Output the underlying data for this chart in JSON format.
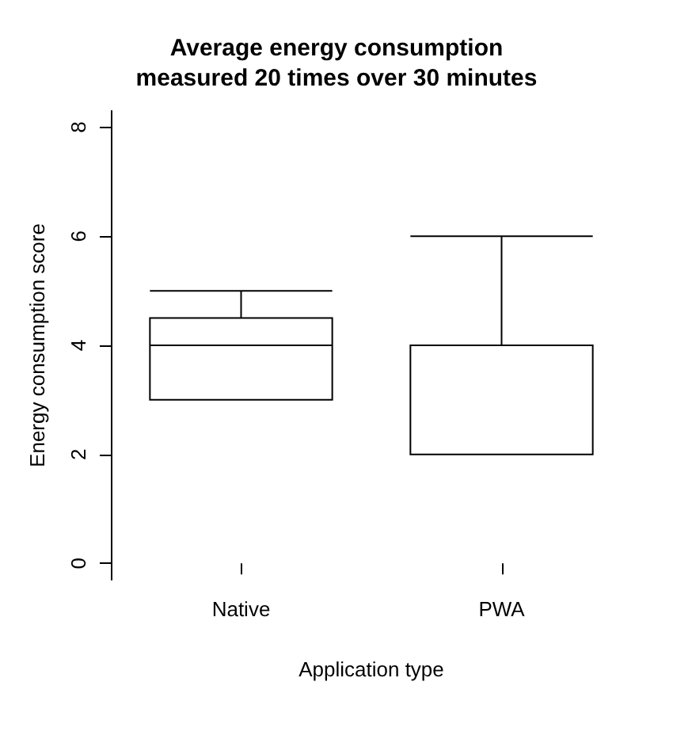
{
  "chart_data": {
    "type": "box",
    "title": "Average energy consumption\nmeasured 20 times over 30 minutes",
    "xlabel": "Application type",
    "ylabel": "Energy consumption score",
    "categories": [
      "Native",
      "PWA"
    ],
    "boxes": [
      {
        "low": 3,
        "q1": 3,
        "median": 4,
        "q3": 4.5,
        "high": 5
      },
      {
        "low": 2,
        "q1": 2,
        "median": 2,
        "q3": 4,
        "high": 6
      }
    ],
    "color": "#000000",
    "ylim": [
      -0.3,
      8.3
    ],
    "yticks": [
      0,
      2,
      4,
      6,
      8
    ],
    "grid": false
  }
}
